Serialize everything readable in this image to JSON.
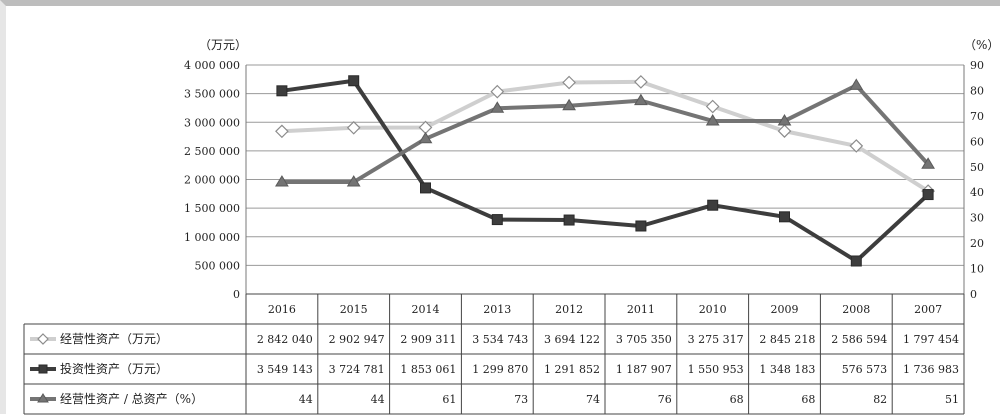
{
  "chart_data": {
    "type": "line",
    "categories": [
      "2016",
      "2015",
      "2014",
      "2013",
      "2012",
      "2011",
      "2010",
      "2009",
      "2008",
      "2007"
    ],
    "y_left_unit": "（万元）",
    "y_right_unit": "（%）",
    "y_left_ticks": [
      "4 000 000",
      "3 500 000",
      "3 000 000",
      "2 500 000",
      "2 000 000",
      "1 500 000",
      "1 000 000",
      "500 000",
      "0"
    ],
    "y_right_ticks": [
      "90",
      "80",
      "70",
      "60",
      "50",
      "40",
      "30",
      "20",
      "10",
      "0"
    ],
    "ylim_left": [
      0,
      4000000
    ],
    "ylim_right": [
      0,
      90
    ],
    "grid": true,
    "series": [
      {
        "name": "经营性资产（万元）",
        "axis": "left",
        "marker": "diamond",
        "color": "#cfcfcf",
        "marker_color": "#ffffff",
        "values": [
          2842040,
          2902947,
          2909311,
          3534743,
          3694122,
          3705350,
          3275317,
          2845218,
          2586594,
          1797454
        ],
        "display": [
          "2 842 040",
          "2 902 947",
          "2 909 311",
          "3 534 743",
          "3 694 122",
          "3 705 350",
          "3 275 317",
          "2 845 218",
          "2 586 594",
          "1 797 454"
        ]
      },
      {
        "name": "投资性资产（万元）",
        "axis": "left",
        "marker": "square",
        "color": "#3d3d3d",
        "marker_color": "#3d3d3d",
        "values": [
          3549143,
          3724781,
          1853061,
          1299870,
          1291852,
          1187907,
          1550953,
          1348183,
          576573,
          1736983
        ],
        "display": [
          "3 549 143",
          "3 724 781",
          "1 853 061",
          "1 299 870",
          "1 291 852",
          "1 187 907",
          "1 550 953",
          "1 348 183",
          "576 573",
          "1 736 983"
        ]
      },
      {
        "name": "经营性资产 / 总资产（%）",
        "axis": "right",
        "marker": "triangle",
        "color": "#747474",
        "marker_color": "#747474",
        "values": [
          44,
          44,
          61,
          73,
          74,
          76,
          68,
          68,
          82,
          51
        ],
        "display": [
          "44",
          "44",
          "61",
          "73",
          "74",
          "76",
          "68",
          "68",
          "82",
          "51"
        ]
      }
    ]
  }
}
